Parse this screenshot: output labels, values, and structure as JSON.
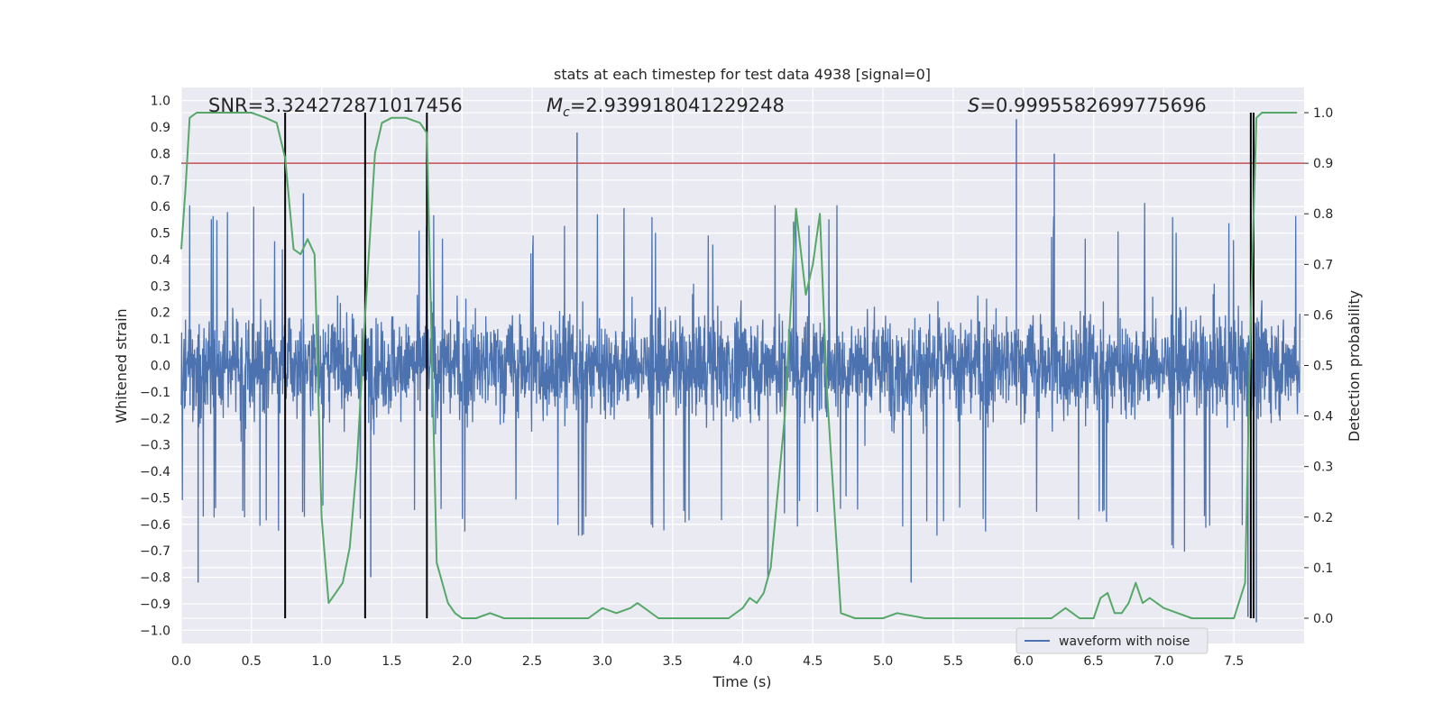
{
  "chart_data": {
    "type": "line",
    "title": "stats at each timestep for test data 4938 [signal=0]",
    "xlabel": "Time (s)",
    "ylabel_left": "Whitened strain",
    "ylabel_right": "Detection probability",
    "xlim": [
      0.0,
      8.0
    ],
    "ylim_left": [
      -1.05,
      1.05
    ],
    "ylim_right": [
      -0.05,
      1.05
    ],
    "x_ticks": [
      "0.0",
      "0.5",
      "1.0",
      "1.5",
      "2.0",
      "2.5",
      "3.0",
      "3.5",
      "4.0",
      "4.5",
      "5.0",
      "5.5",
      "6.0",
      "6.5",
      "7.0",
      "7.5"
    ],
    "y_left_ticks": [
      "1.0",
      "0.9",
      "0.8",
      "0.7",
      "0.6",
      "0.5",
      "0.4",
      "0.3",
      "0.2",
      "0.1",
      "0.0",
      "-0.1",
      "-0.2",
      "-0.3",
      "-0.4",
      "-0.5",
      "-0.6",
      "-0.7",
      "-0.8",
      "-0.9",
      "-1.0"
    ],
    "y_right_ticks": [
      "1.0",
      "0.9",
      "0.8",
      "0.7",
      "0.6",
      "0.5",
      "0.4",
      "0.3",
      "0.2",
      "0.1",
      "0.0"
    ],
    "grid": true,
    "legend": {
      "position": "lower-right",
      "entries": [
        "waveform with noise"
      ]
    },
    "annotations": {
      "snr": "SNR=3.324272871017456",
      "mc_symbol": "M",
      "mc_sub": "c",
      "mc_value": "=2.939918041229248",
      "s_symbol": "S",
      "s_value": "=0.9995582699775696"
    },
    "threshold": {
      "axis": "right",
      "value": 0.9,
      "color": "#c44e52"
    },
    "vertical_lines": [
      0.74,
      1.31,
      1.75,
      7.62,
      7.64
    ],
    "vertical_line_range_right": [
      0.0,
      1.0
    ],
    "waveform": {
      "name": "waveform with noise",
      "color": "#4c72b0",
      "envelope_max": [
        0.62,
        0.55,
        0.58,
        0.6,
        0.5,
        0.58,
        0.48,
        0.6,
        0.62,
        0.6,
        0.58,
        0.56,
        0.66,
        0.55,
        0.5,
        0.48,
        0.6,
        0.55,
        0.62,
        0.6,
        0.58,
        0.56,
        0.55,
        0.53,
        0.62,
        0.5,
        0.6,
        0.55,
        0.56,
        0.58,
        0.6,
        0.52,
        0.55,
        0.58,
        0.6,
        0.5,
        0.58,
        0.66,
        0.55,
        0.52,
        0.5,
        0.55,
        0.6,
        0.62,
        0.56,
        0.54,
        0.58,
        0.55,
        0.52,
        0.56
      ],
      "envelope_min": [
        -0.55,
        -0.6,
        -0.58,
        -0.62,
        -0.6,
        -0.55,
        -0.58,
        -0.7,
        -0.6,
        -0.62,
        -0.56,
        -0.58,
        -0.6,
        -0.58,
        -0.55,
        -0.62,
        -0.6,
        -0.7,
        -0.58,
        -0.55,
        -0.6,
        -0.62,
        -0.58,
        -0.55,
        -0.6,
        -0.58,
        -0.62,
        -0.6,
        -0.56,
        -0.58,
        -0.6,
        -0.55,
        -0.6,
        -0.62,
        -0.58,
        -0.6,
        -0.56,
        -0.58,
        -0.6,
        -0.62,
        -0.58,
        -0.6,
        -0.55,
        -0.58,
        -0.7,
        -0.6,
        -0.58,
        -0.62,
        -0.6,
        -0.58
      ],
      "spikes": [
        [
          0.12,
          -0.82
        ],
        [
          0.87,
          0.65
        ],
        [
          1.35,
          -0.8
        ],
        [
          2.82,
          0.88
        ],
        [
          4.18,
          -0.8
        ],
        [
          5.95,
          0.93
        ],
        [
          6.22,
          0.8
        ],
        [
          5.2,
          -0.82
        ],
        [
          7.66,
          -0.97
        ],
        [
          7.6,
          -0.95
        ]
      ]
    },
    "probability": {
      "color": "#55a868",
      "x": [
        0.0,
        0.03,
        0.06,
        0.11,
        0.2,
        0.3,
        0.4,
        0.5,
        0.6,
        0.68,
        0.74,
        0.8,
        0.85,
        0.9,
        0.95,
        1.0,
        1.05,
        1.1,
        1.15,
        1.2,
        1.25,
        1.31,
        1.38,
        1.43,
        1.5,
        1.6,
        1.7,
        1.75,
        1.82,
        1.9,
        1.95,
        2.0,
        2.1,
        2.2,
        2.3,
        2.4,
        2.6,
        2.8,
        2.9,
        3.0,
        3.1,
        3.2,
        3.25,
        3.3,
        3.4,
        3.5,
        3.6,
        3.8,
        3.9,
        4.0,
        4.05,
        4.1,
        4.15,
        4.2,
        4.3,
        4.38,
        4.45,
        4.5,
        4.55,
        4.6,
        4.7,
        4.8,
        5.0,
        5.1,
        5.3,
        5.5,
        6.0,
        6.2,
        6.3,
        6.35,
        6.4,
        6.5,
        6.55,
        6.6,
        6.65,
        6.7,
        6.75,
        6.8,
        6.85,
        6.9,
        7.0,
        7.1,
        7.2,
        7.3,
        7.5,
        7.58,
        7.62,
        7.66,
        7.7,
        7.8,
        7.95
      ],
      "y": [
        0.73,
        0.85,
        0.99,
        1.0,
        1.0,
        1.0,
        1.0,
        1.0,
        0.99,
        0.98,
        0.91,
        0.73,
        0.72,
        0.75,
        0.72,
        0.2,
        0.03,
        0.05,
        0.07,
        0.14,
        0.3,
        0.6,
        0.92,
        0.98,
        0.99,
        0.99,
        0.98,
        0.96,
        0.11,
        0.03,
        0.01,
        0.0,
        0.0,
        0.01,
        0.0,
        0.0,
        0.0,
        0.0,
        0.0,
        0.02,
        0.01,
        0.02,
        0.03,
        0.02,
        0.0,
        0.0,
        0.0,
        0.0,
        0.0,
        0.02,
        0.04,
        0.03,
        0.05,
        0.1,
        0.4,
        0.81,
        0.64,
        0.7,
        0.8,
        0.45,
        0.01,
        0.0,
        0.0,
        0.01,
        0.0,
        0.0,
        0.0,
        0.0,
        0.02,
        0.01,
        0.0,
        0.0,
        0.04,
        0.05,
        0.01,
        0.01,
        0.03,
        0.07,
        0.03,
        0.04,
        0.02,
        0.01,
        0.0,
        0.0,
        0.0,
        0.07,
        0.6,
        0.99,
        1.0,
        1.0,
        1.0
      ]
    }
  }
}
